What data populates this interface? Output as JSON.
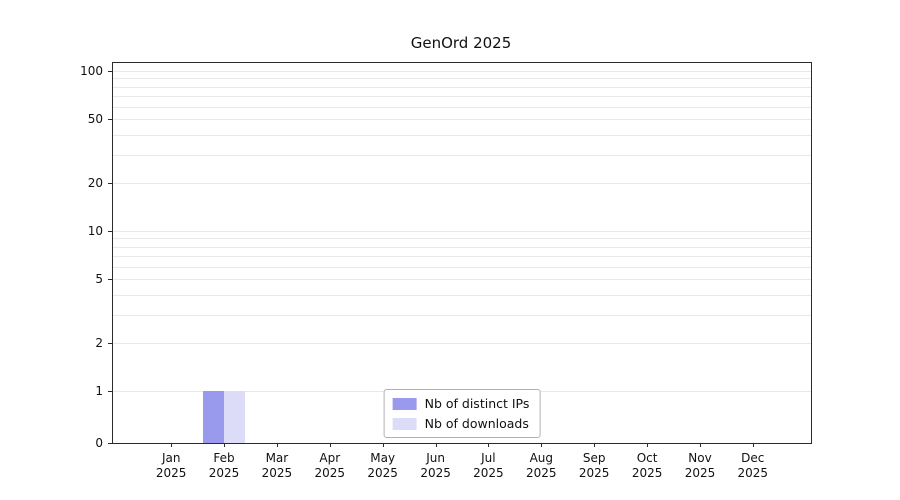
{
  "chart_data": {
    "type": "bar",
    "title": "GenOrd 2025",
    "categories": [
      "Jan",
      "Feb",
      "Mar",
      "Apr",
      "May",
      "Jun",
      "Jul",
      "Aug",
      "Sep",
      "Oct",
      "Nov",
      "Dec"
    ],
    "xtick_year": "2025",
    "series": [
      {
        "name": "Nb of distinct IPs",
        "color": "#9999ee",
        "values": [
          0,
          1,
          0,
          0,
          0,
          0,
          0,
          0,
          0,
          0,
          0,
          0
        ]
      },
      {
        "name": "Nb of downloads",
        "color": "#dcdcf8",
        "values": [
          0,
          1,
          0,
          0,
          0,
          0,
          0,
          0,
          0,
          0,
          0,
          0
        ]
      }
    ],
    "yticks": [
      0,
      1,
      2,
      5,
      10,
      20,
      50,
      100
    ],
    "ylim": [
      0,
      100
    ],
    "yscale": "symlog",
    "grid": "horizontal-minor",
    "grid_color": "#e9e9e9",
    "legend_position": "lower center",
    "background": "#ffffff"
  }
}
